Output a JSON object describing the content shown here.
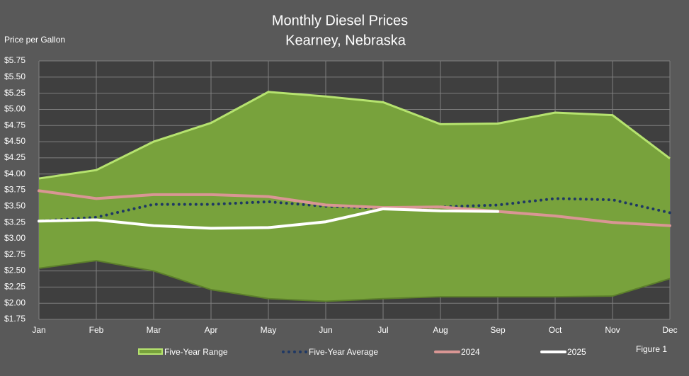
{
  "chart_data": {
    "type": "band-line",
    "title": "Monthly Diesel Prices",
    "subtitle": "Kearney, Nebraska",
    "y_label": "Price per Gallon",
    "annotation": "Figure 1",
    "categories": [
      "Jan",
      "Feb",
      "Mar",
      "Apr",
      "May",
      "Jun",
      "Jul",
      "Aug",
      "Sep",
      "Oct",
      "Nov",
      "Dec"
    ],
    "ylim": [
      1.75,
      5.75
    ],
    "yticks": [
      {
        "value": 1.75,
        "label": "$1.75"
      },
      {
        "value": 2,
        "label": "$2.00"
      },
      {
        "value": 2.25,
        "label": "$2.25"
      },
      {
        "value": 2.5,
        "label": "$2.50"
      },
      {
        "value": 2.75,
        "label": "$2.75"
      },
      {
        "value": 3,
        "label": "$3.00"
      },
      {
        "value": 3.25,
        "label": "$3.25"
      },
      {
        "value": 3.5,
        "label": "$3.50"
      },
      {
        "value": 3.75,
        "label": "$3.75"
      },
      {
        "value": 4,
        "label": "$4.00"
      },
      {
        "value": 4.25,
        "label": "$4.25"
      },
      {
        "value": 4.5,
        "label": "$4.50"
      },
      {
        "value": 4.75,
        "label": "$4.75"
      },
      {
        "value": 5,
        "label": "$5.00"
      },
      {
        "value": 5.25,
        "label": "$5.25"
      },
      {
        "value": 5.5,
        "label": "$5.50"
      },
      {
        "value": 5.75,
        "label": "$5.75"
      }
    ],
    "grid": true,
    "band": {
      "name": "Five-Year Range",
      "color": "#78a23c",
      "edge_color": "#b6e36f",
      "high": [
        3.93,
        4.06,
        4.5,
        4.79,
        5.27,
        5.2,
        5.11,
        4.77,
        4.78,
        4.95,
        4.91,
        4.24
      ],
      "low": [
        2.54,
        2.66,
        2.5,
        2.21,
        2.07,
        2.03,
        2.07,
        2.1,
        2.1,
        2.1,
        2.11,
        2.38
      ]
    },
    "series": [
      {
        "name": "Five-Year Average",
        "color": "#1f3864",
        "style": "dotted",
        "values": [
          3.27,
          3.33,
          3.53,
          3.53,
          3.57,
          3.5,
          3.47,
          3.49,
          3.52,
          3.62,
          3.6,
          3.4
        ]
      },
      {
        "name": "2024",
        "color": "#d99694",
        "style": "solid",
        "values": [
          3.74,
          3.62,
          3.68,
          3.68,
          3.65,
          3.52,
          3.48,
          3.49,
          3.42,
          3.35,
          3.25,
          3.2
        ]
      },
      {
        "name": "2025",
        "color": "#ffffff",
        "style": "solid",
        "values": [
          3.27,
          3.29,
          3.2,
          3.16,
          3.17,
          3.26,
          3.46,
          3.43,
          3.42,
          null,
          null,
          null
        ]
      }
    ]
  }
}
